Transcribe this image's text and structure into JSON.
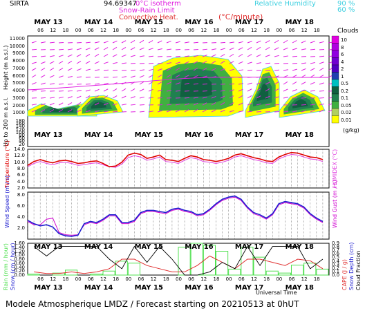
{
  "header": {
    "station": "SIRTA",
    "coords": "94.69347",
    "isotherm_label": "0°C isotherm",
    "snowrain_label": "Snow-Rain Limit",
    "convective_label": "Convective Heat.",
    "convective_unit": "(°C/minute)",
    "rh_label": "Relative Humidity",
    "rh_90": "90 %",
    "rh_60": "60 %",
    "clouds_label": "Clouds",
    "gkg_label": "(g/kg)"
  },
  "colors": {
    "temperature": "#e00000",
    "humidex": "#e040e0",
    "wind": "#2020d0",
    "gust": "#d000d0",
    "rain": "#50e050",
    "snow": "#000000",
    "cape": "#e03030",
    "isotherm": "#e020e0",
    "rh": "#40d0e0",
    "cloud_scale": [
      "#ffff00",
      "#b0d060",
      "#40b040",
      "#208050",
      "#106040",
      "#00c0c0",
      "#2040b0",
      "#5000c0",
      "#9000e0",
      "#e000e0"
    ]
  },
  "chart_data": [
    {
      "type": "heatmap",
      "title": "Clouds",
      "ylabel": "Height (m a.s.l.)",
      "ylabel_low": "Up to 200 m a.s.l.",
      "ytick_labels": [
        "11000",
        "10000",
        "9000",
        "8000",
        "7000",
        "6000",
        "5000",
        "4000",
        "3000",
        "2000",
        "1000",
        "180",
        "160",
        "140",
        "120",
        "100",
        "80",
        "60",
        "40",
        "20"
      ],
      "days": [
        "MAY 13",
        "MAY 14",
        "MAY 15",
        "MAY 16",
        "MAY 17",
        "MAY 18"
      ],
      "hours": [
        "06",
        "12",
        "18",
        "00"
      ],
      "colorbar_labels": [
        "10",
        "8",
        "6",
        "4",
        "2",
        "1",
        "0.5",
        "0.2",
        "0.1",
        "0.05",
        "0.02",
        "0.01"
      ]
    },
    {
      "type": "line",
      "ylabel": "Temperature (°C)",
      "ylabel_right": "HUMIDEX (°C)",
      "ytick_labels": [
        "14.0",
        "12.0",
        "10.0",
        "8.0",
        "6.0",
        "4.0",
        "2.0"
      ],
      "ylim": [
        2,
        14
      ],
      "x": [
        0,
        3,
        6,
        9,
        12,
        15,
        18,
        21,
        24,
        27,
        30,
        33,
        36,
        39,
        42,
        45,
        48,
        51,
        54,
        57,
        60,
        63,
        66,
        69,
        72,
        75,
        78,
        81,
        84,
        87,
        90,
        93,
        96,
        99,
        102,
        105,
        108,
        111,
        114,
        117,
        120,
        123,
        126,
        129,
        132,
        135,
        138,
        141
      ],
      "series": [
        {
          "name": "Temperature",
          "values": [
            9,
            10.2,
            10.8,
            10.2,
            9.8,
            10.4,
            10.6,
            10.2,
            9.6,
            9.8,
            10.2,
            10.4,
            9.6,
            8.6,
            8.8,
            10.0,
            12.2,
            12.8,
            12.4,
            11.2,
            11.6,
            12.2,
            10.8,
            10.6,
            10.2,
            11.2,
            12.0,
            11.6,
            10.8,
            10.6,
            10.2,
            10.6,
            11.2,
            12.2,
            12.6,
            12.0,
            11.4,
            11.0,
            10.4,
            10.2,
            11.6,
            12.4,
            13.0,
            12.8,
            12.2,
            11.6,
            11.4,
            10.8
          ]
        },
        {
          "name": "HUMIDEX",
          "values": [
            8.6,
            9.6,
            10.2,
            9.6,
            9.2,
            9.8,
            10.0,
            9.6,
            9.0,
            9.2,
            9.6,
            9.8,
            9.2,
            8.6,
            8.4,
            9.4,
            11.4,
            12.0,
            11.6,
            10.6,
            11.0,
            11.6,
            10.2,
            10.0,
            9.6,
            10.6,
            11.4,
            11.0,
            10.2,
            10.0,
            9.6,
            10.0,
            10.6,
            11.6,
            12.0,
            11.4,
            10.8,
            10.4,
            9.8,
            9.6,
            11.0,
            11.8,
            12.4,
            12.2,
            11.6,
            11.0,
            10.8,
            10.2
          ]
        }
      ]
    },
    {
      "type": "line",
      "ylabel": "Wind Speed (m / s)",
      "ylabel_right": "Wind Gust (m / s)",
      "ytick_labels": [
        "8.0",
        "6.0",
        "4.0",
        "2.0"
      ],
      "ylim": [
        0,
        8.5
      ],
      "x": [
        0,
        3,
        6,
        9,
        12,
        15,
        18,
        21,
        24,
        27,
        30,
        33,
        36,
        39,
        42,
        45,
        48,
        51,
        54,
        57,
        60,
        63,
        66,
        69,
        72,
        75,
        78,
        81,
        84,
        87,
        90,
        93,
        96,
        99,
        102,
        105,
        108,
        111,
        114,
        117,
        120,
        123,
        126,
        129,
        132,
        135,
        138,
        141
      ],
      "series": [
        {
          "name": "Wind Speed",
          "values": [
            3.4,
            2.8,
            2.4,
            2.6,
            2.2,
            1.0,
            0.6,
            0.5,
            0.7,
            2.8,
            3.2,
            3.0,
            3.6,
            4.4,
            4.4,
            3.0,
            3.0,
            3.4,
            4.8,
            5.2,
            5.2,
            5.0,
            4.8,
            5.4,
            5.6,
            5.2,
            5.0,
            4.4,
            4.6,
            5.4,
            6.4,
            7.2,
            7.6,
            7.8,
            7.2,
            5.8,
            4.8,
            4.4,
            3.8,
            4.6,
            6.4,
            6.8,
            6.6,
            6.4,
            5.8,
            4.6,
            3.8,
            3.2
          ]
        },
        {
          "name": "Wind Gust",
          "values": [
            3.2,
            2.6,
            2.6,
            3.6,
            3.8,
            1.2,
            0.8,
            0.7,
            0.8,
            2.6,
            3.0,
            2.8,
            3.4,
            4.2,
            4.2,
            2.8,
            2.8,
            3.2,
            4.6,
            5.0,
            5.0,
            4.8,
            4.6,
            5.2,
            5.4,
            5.0,
            4.8,
            4.2,
            4.4,
            5.2,
            6.2,
            7.0,
            7.4,
            7.6,
            7.0,
            5.6,
            4.6,
            4.2,
            3.6,
            4.4,
            6.2,
            6.6,
            6.4,
            6.2,
            5.6,
            4.4,
            3.6,
            3.0
          ]
        }
      ]
    },
    {
      "type": "bar",
      "ylabel": "Rain (mm / hour)",
      "ylabel2": "Snow (cm / hour)",
      "ylabel_right": "CAPE (J / g)",
      "ylabel_right2": "Snow Depth (cm)",
      "ylabel_right3": "Cloud Fraction",
      "ytick_labels": [
        "1.60",
        "1.40",
        "1.20",
        "1.00",
        "0.80",
        "0.60",
        "0.40",
        "0.20",
        "0.00"
      ],
      "ytick_right": [
        "0.9",
        "0.8",
        "0.7",
        "0.6",
        "0.5",
        "0.4",
        "0.3",
        "0.2",
        "0.1",
        "0.0"
      ],
      "ylim": [
        0,
        1.6
      ],
      "x": [
        0,
        6,
        12,
        18,
        24,
        30,
        36,
        42,
        48,
        54,
        60,
        66,
        72,
        78,
        84,
        90,
        96,
        102,
        108,
        114,
        120,
        126,
        132,
        138
      ],
      "series": [
        {
          "name": "Rain",
          "values": [
            0.05,
            0.0,
            0.1,
            0.25,
            0.0,
            0.05,
            0.2,
            0.7,
            0.6,
            0.0,
            0.0,
            0.0,
            1.4,
            1.6,
            1.5,
            1.2,
            0.3,
            1.4,
            0.9,
            0.2,
            0.1,
            0.5,
            0.6,
            0.3
          ]
        },
        {
          "name": "CAPE",
          "values": [
            0.1,
            0.05,
            0.05,
            0.1,
            0.05,
            0.1,
            0.2,
            0.5,
            0.5,
            0.3,
            0.2,
            0.1,
            0.1,
            0.3,
            0.6,
            0.4,
            0.2,
            0.5,
            0.5,
            0.4,
            0.3,
            0.5,
            0.45,
            0.2
          ]
        },
        {
          "name": "Cloud Fraction",
          "values": [
            0.9,
            0.6,
            0.9,
            0.9,
            0.9,
            0.9,
            0.5,
            0.2,
            0.9,
            0.4,
            0.9,
            0.5,
            0.0,
            0.0,
            0.1,
            0.4,
            0.2,
            0.9,
            0.3,
            0.9,
            0.9,
            0.9,
            0.2,
            0.5
          ]
        }
      ],
      "xlabel": "Universal Time"
    }
  ],
  "footer": {
    "text": "Modele Atmospherique LMDZ / Forecast starting on 20210513 at 0hUT"
  }
}
